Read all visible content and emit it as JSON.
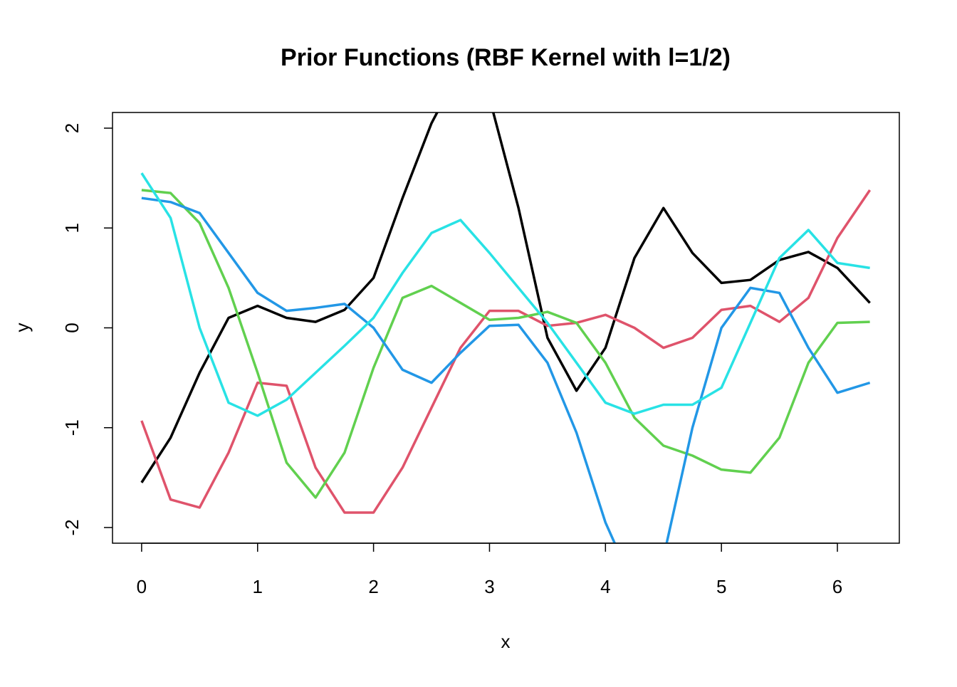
{
  "chart_data": {
    "type": "line",
    "title": "Prior Functions (RBF Kernel with l=1/2)",
    "x_label": "x",
    "y_label": "y",
    "x": [
      0,
      0.25,
      0.5,
      0.75,
      1,
      1.25,
      1.5,
      1.75,
      2,
      2.25,
      2.5,
      2.75,
      3,
      3.25,
      3.5,
      3.75,
      4,
      4.25,
      4.5,
      4.75,
      5,
      5.25,
      5.5,
      5.75,
      6,
      6.28
    ],
    "series": [
      {
        "color": "#000000",
        "values": [
          -1.55,
          -1.1,
          -0.45,
          0.1,
          0.22,
          0.1,
          0.06,
          0.18,
          0.5,
          1.3,
          2.05,
          2.6,
          2.3,
          1.2,
          -0.1,
          -0.63,
          -0.2,
          0.7,
          1.2,
          0.75,
          0.45,
          0.48,
          0.68,
          0.76,
          0.6,
          0.25
        ]
      },
      {
        "color": "#DF536B",
        "values": [
          -0.93,
          -1.72,
          -1.8,
          -1.25,
          -0.55,
          -0.58,
          -1.4,
          -1.85,
          -1.85,
          -1.4,
          -0.8,
          -0.2,
          0.17,
          0.17,
          0.02,
          0.05,
          0.13,
          0.0,
          -0.2,
          -0.1,
          0.18,
          0.22,
          0.06,
          0.3,
          0.9,
          1.38
        ]
      },
      {
        "color": "#61D04F",
        "values": [
          1.38,
          1.35,
          1.05,
          0.4,
          -0.45,
          -1.35,
          -1.7,
          -1.25,
          -0.4,
          0.3,
          0.42,
          0.25,
          0.08,
          0.1,
          0.16,
          0.05,
          -0.35,
          -0.9,
          -1.18,
          -1.28,
          -1.42,
          -1.45,
          -1.1,
          -0.35,
          0.05,
          0.06
        ]
      },
      {
        "color": "#2297E6",
        "values": [
          1.3,
          1.26,
          1.15,
          0.75,
          0.35,
          0.17,
          0.2,
          0.24,
          0.0,
          -0.42,
          -0.55,
          -0.25,
          0.02,
          0.03,
          -0.35,
          -1.05,
          -1.95,
          -2.6,
          -2.3,
          -1.0,
          0.0,
          0.4,
          0.35,
          -0.2,
          -0.65,
          -0.55
        ]
      },
      {
        "color": "#28E2E5",
        "values": [
          1.55,
          1.1,
          0.0,
          -0.75,
          -0.88,
          -0.72,
          -0.45,
          -0.18,
          0.1,
          0.55,
          0.95,
          1.08,
          0.75,
          0.4,
          0.05,
          -0.35,
          -0.75,
          -0.86,
          -0.77,
          -0.77,
          -0.6,
          0.05,
          0.7,
          0.98,
          0.65,
          0.6
        ]
      }
    ],
    "xlim": [
      -0.251,
      6.534
    ],
    "ylim": [
      -2.157,
      2.157
    ],
    "xticks": [
      0,
      1,
      2,
      3,
      4,
      5,
      6
    ],
    "yticks": [
      -2,
      -1,
      0,
      1,
      2
    ]
  }
}
